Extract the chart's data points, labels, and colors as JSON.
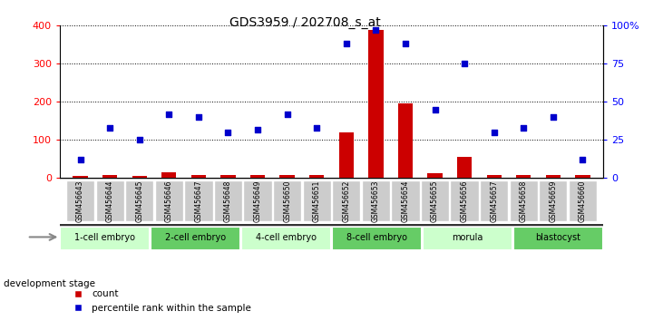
{
  "title": "GDS3959 / 202708_s_at",
  "samples": [
    "GSM456643",
    "GSM456644",
    "GSM456645",
    "GSM456646",
    "GSM456647",
    "GSM456648",
    "GSM456649",
    "GSM456650",
    "GSM456651",
    "GSM456652",
    "GSM456653",
    "GSM456654",
    "GSM456655",
    "GSM456656",
    "GSM456657",
    "GSM456658",
    "GSM456659",
    "GSM456660"
  ],
  "counts": [
    5,
    8,
    5,
    15,
    8,
    8,
    8,
    8,
    8,
    120,
    390,
    195,
    12,
    55,
    8,
    8,
    8,
    8
  ],
  "percentile": [
    12,
    33,
    25,
    42,
    40,
    30,
    32,
    42,
    33,
    88,
    97,
    88,
    45,
    75,
    30,
    33,
    40,
    12
  ],
  "stages": [
    {
      "label": "1-cell embryo",
      "start": 0,
      "end": 3
    },
    {
      "label": "2-cell embryo",
      "start": 3,
      "end": 6
    },
    {
      "label": "4-cell embryo",
      "start": 6,
      "end": 9
    },
    {
      "label": "8-cell embryo",
      "start": 9,
      "end": 12
    },
    {
      "label": "morula",
      "start": 12,
      "end": 15
    },
    {
      "label": "blastocyst",
      "start": 15,
      "end": 18
    }
  ],
  "ylim_left": [
    0,
    400
  ],
  "ylim_right": [
    0,
    100
  ],
  "yticks_left": [
    0,
    100,
    200,
    300,
    400
  ],
  "yticks_right": [
    0,
    25,
    50,
    75,
    100
  ],
  "bar_color": "#CC0000",
  "dot_color": "#0000CC",
  "bar_width": 0.5,
  "stage_green_light": "#ccffcc",
  "stage_green_dark": "#66cc66",
  "sample_box_color": "#cccccc",
  "stage_header_bg": "#333333"
}
